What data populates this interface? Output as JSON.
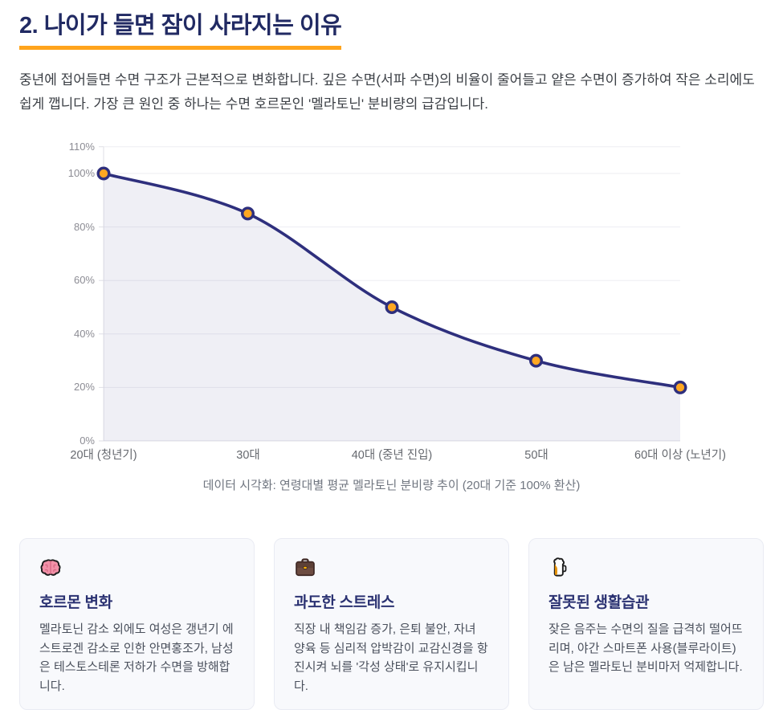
{
  "page": {
    "title": "2. 나이가 들면 잠이 사라지는 이유",
    "intro": "중년에 접어들면 수면 구조가 근본적으로 변화합니다. 깊은 수면(서파 수면)의 비율이 줄어들고 얕은 수면이 증가하여 작은 소리에도 쉽게 깹니다. 가장 큰 원인 중 하나는 수면 호르몬인 '멜라토닌' 분비량의 급감입니다.",
    "accent_color": "#ffa41c",
    "title_color": "#212a63"
  },
  "chart_data": {
    "type": "area",
    "categories": [
      "20대 (청년기)",
      "30대",
      "40대 (중년 진입)",
      "50대",
      "60대 이상 (노년기)"
    ],
    "values": [
      100,
      85,
      50,
      30,
      20
    ],
    "unit": "%",
    "yticks": [
      0,
      20,
      40,
      60,
      80,
      100,
      110
    ],
    "ylim": [
      0,
      110
    ],
    "grid": true,
    "legend": false,
    "title": "",
    "xlabel": "",
    "ylabel": "",
    "caption": "데이터 시각화: 연령대별 평균 멜라토닌 분비량 추이 (20대 기준 100% 환산)",
    "line_color": "#2e2f7d",
    "point_fill": "#ffa722",
    "area_fill": "rgba(46,47,125,0.08)",
    "grid_color": "#ededf2",
    "axis_color": "#dfdfe6",
    "ytick_color": "#8c8c94",
    "xtick_color": "#66696f"
  },
  "cards": [
    {
      "icon": "brain-icon",
      "emoji": "🧠",
      "title": "호르몬 변화",
      "body": "멜라토닌 감소 외에도 여성은 갱년기 에스트로겐 감소로 인한 안면홍조가, 남성은 테스토스테론 저하가 수면을 방해합니다."
    },
    {
      "icon": "briefcase-icon",
      "emoji": "💼",
      "title": "과도한 스트레스",
      "body": "직장 내 책임감 증가, 은퇴 불안, 자녀 양육 등 심리적 압박감이 교감신경을 항진시켜 뇌를 '각성 상태'로 유지시킵니다."
    },
    {
      "icon": "beer-icon",
      "emoji": "🍺",
      "title": "잘못된 생활습관",
      "body": "잦은 음주는 수면의 질을 급격히 떨어뜨리며, 야간 스마트폰 사용(블루라이트)은 남은 멜라토닌 분비마저 억제합니다."
    }
  ]
}
